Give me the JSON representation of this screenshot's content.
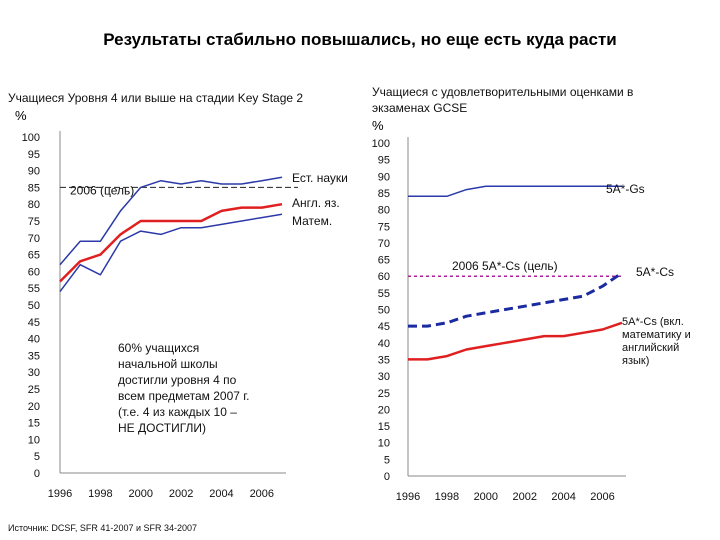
{
  "title": "Результаты стабильно повышались, но еще есть куда расти",
  "source": "Источник: DCSF, SFR 41-2007 и SFR 34-2007",
  "chart_data": [
    {
      "type": "line",
      "subtitle": "Учащиеся Уровня 4 или выше на стадии Key Stage 2",
      "unit": "%",
      "xlim": [
        1996,
        2007
      ],
      "ylim": [
        0,
        100
      ],
      "yticks": [
        0,
        5,
        10,
        15,
        20,
        25,
        30,
        35,
        40,
        45,
        50,
        55,
        60,
        65,
        70,
        75,
        80,
        85,
        90,
        95,
        100
      ],
      "xticks": [
        1996,
        1998,
        2000,
        2002,
        2004,
        2006
      ],
      "series": [
        {
          "name": "Ест. науки",
          "color": "#2b3aa8",
          "dash": false,
          "x": [
            1996,
            1997,
            1998,
            1999,
            2000,
            2001,
            2002,
            2003,
            2004,
            2005,
            2006,
            2007
          ],
          "y": [
            62,
            69,
            69,
            78,
            85,
            87,
            86,
            87,
            86,
            86,
            87,
            88
          ]
        },
        {
          "name": "Англ. яз.",
          "color": "#e02020",
          "dash": false,
          "x": [
            1996,
            1997,
            1998,
            1999,
            2000,
            2001,
            2002,
            2003,
            2004,
            2005,
            2006,
            2007
          ],
          "y": [
            57,
            63,
            65,
            71,
            75,
            75,
            75,
            75,
            78,
            79,
            79,
            80
          ]
        },
        {
          "name": "Матем.",
          "color": "#2b3aa8",
          "dash": false,
          "x": [
            1996,
            1997,
            1998,
            1999,
            2000,
            2001,
            2002,
            2003,
            2004,
            2005,
            2006,
            2007
          ],
          "y": [
            54,
            62,
            59,
            69,
            72,
            71,
            73,
            73,
            74,
            75,
            76,
            77
          ]
        }
      ],
      "target": {
        "label": "2006 (цель)",
        "value": 85,
        "color": "#222222"
      },
      "annotation": "60% учащихся начальной школы достигли уровня 4 по всем предметам 2007 г. (т.е. 4 из каждых 10 – НЕ ДОСТИГЛИ)"
    },
    {
      "type": "line",
      "subtitle": "Учащиеся с удовлетворительными оценками в экзаменах GCSE",
      "unit": "%",
      "xlim": [
        1996,
        2007
      ],
      "ylim": [
        0,
        100
      ],
      "yticks": [
        0,
        5,
        10,
        15,
        20,
        25,
        30,
        35,
        40,
        45,
        50,
        55,
        60,
        65,
        70,
        75,
        80,
        85,
        90,
        95,
        100
      ],
      "xticks": [
        1996,
        1998,
        2000,
        2002,
        2004,
        2006
      ],
      "series": [
        {
          "name": "5A*-Gs",
          "color": "#2b3aa8",
          "dash": false,
          "x": [
            1996,
            1997,
            1998,
            1999,
            2000,
            2001,
            2002,
            2003,
            2004,
            2005,
            2006,
            2007
          ],
          "y": [
            84,
            84,
            84,
            86,
            87,
            87,
            87,
            87,
            87,
            87,
            87,
            87
          ]
        },
        {
          "name": "5A*-Cs",
          "color": "#1a2aa0",
          "dash": true,
          "x": [
            1996,
            1997,
            1998,
            1999,
            2000,
            2001,
            2002,
            2003,
            2004,
            2005,
            2006,
            2007
          ],
          "y": [
            45,
            45,
            46,
            48,
            49,
            50,
            51,
            52,
            53,
            54,
            57,
            61
          ]
        },
        {
          "name": "5A*-Cs (вкл. математику и английский язык)",
          "color": "#e02020",
          "dash": false,
          "x": [
            1996,
            1997,
            1998,
            1999,
            2000,
            2001,
            2002,
            2003,
            2004,
            2005,
            2006,
            2007
          ],
          "y": [
            35,
            35,
            36,
            38,
            39,
            40,
            41,
            42,
            42,
            43,
            44,
            46
          ]
        }
      ],
      "target": {
        "label": "2006 5A*-Cs (цель)",
        "value": 60,
        "color": "#b0209a"
      }
    }
  ]
}
